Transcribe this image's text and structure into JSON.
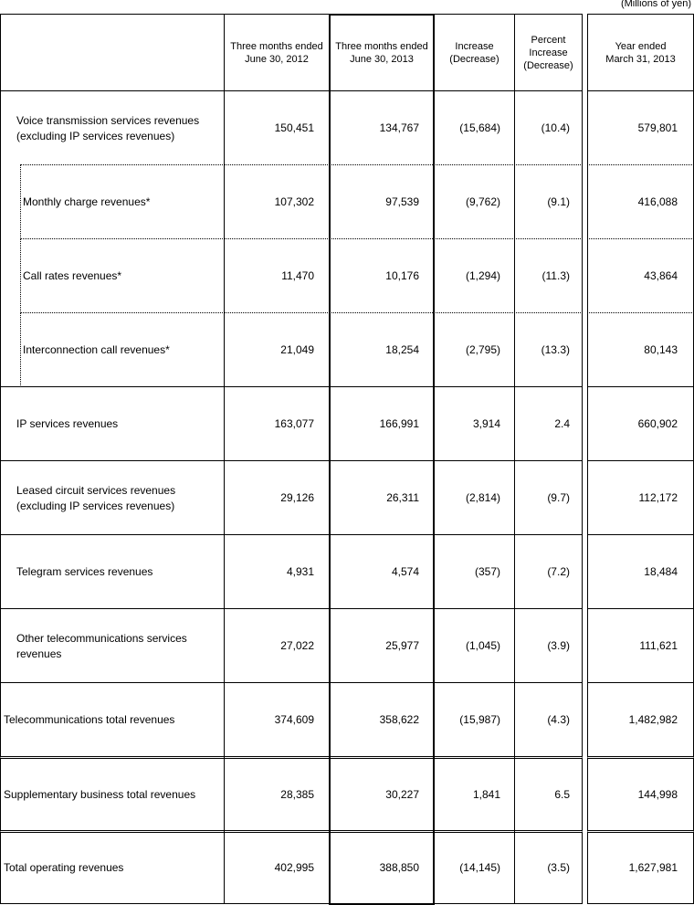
{
  "header": {
    "unit": "(Millions of yen)"
  },
  "table": {
    "columns": [
      "Three months ended\nJune 30, 2012",
      "Three months ended\nJune 30, 2013",
      "Increase\n(Decrease)",
      "Percent\nIncrease\n(Decrease)",
      "Year ended\nMarch 31, 2013"
    ],
    "rows": [
      [
        "Voice transmission services revenues\n(excluding IP services revenues)",
        "150,451",
        "134,767",
        "(15,684)",
        "(10.4)",
        "579,801"
      ],
      [
        "Monthly charge revenues*",
        "107,302",
        "97,539",
        "(9,762)",
        "(9.1)",
        "416,088"
      ],
      [
        "Call rates revenues*",
        "11,470",
        "10,176",
        "(1,294)",
        "(11.3)",
        "43,864"
      ],
      [
        "Interconnection call revenues*",
        "21,049",
        "18,254",
        "(2,795)",
        "(13.3)",
        "80,143"
      ],
      [
        "IP services revenues",
        "163,077",
        "166,991",
        "3,914",
        "2.4",
        "660,902"
      ],
      [
        "Leased circuit services revenues\n(excluding IP services revenues)",
        "29,126",
        "26,311",
        "(2,814)",
        "(9.7)",
        "112,172"
      ],
      [
        "Telegram services revenues",
        "4,931",
        "4,574",
        "(357)",
        "(7.2)",
        "18,484"
      ],
      [
        "Other telecommunications services\nrevenues",
        "27,022",
        "25,977",
        "(1,045)",
        "(3.9)",
        "111,621"
      ],
      [
        "Telecommunications total revenues",
        "374,609",
        "358,622",
        "(15,987)",
        "(4.3)",
        "1,482,982"
      ],
      [
        "Supplementary business total revenues",
        "28,385",
        "30,227",
        "1,841",
        "6.5",
        "144,998"
      ],
      [
        "Total operating revenues",
        "402,995",
        "388,850",
        "(14,145)",
        "(3.5)",
        "1,627,981"
      ]
    ]
  }
}
